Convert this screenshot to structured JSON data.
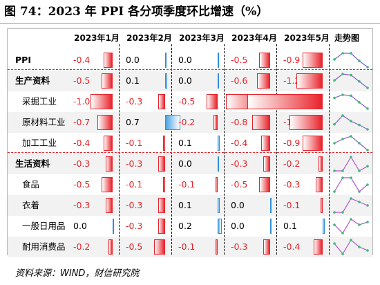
{
  "title": "图 74：2023 年 PPI 各分项季度环比增速（%）",
  "header": {
    "months": [
      "2023年1月",
      "2023年2月",
      "2023年3月",
      "2023年4月",
      "2023年5月"
    ],
    "trend": "走势图"
  },
  "colors": {
    "negative": "#e8232a",
    "positive": "#2f8fd8",
    "trend_blue_line": "#7b5fd0",
    "trend_purple_line": "#b74fd0",
    "trend_point": "#3cb878"
  },
  "rows": [
    {
      "label": "PPI",
      "bold": true,
      "indent": false,
      "values": [
        "-0.4",
        "0.0",
        "0.0",
        "-0.5",
        "-0.9"
      ]
    },
    {
      "label": "生产资料",
      "bold": true,
      "indent": false,
      "values": [
        "-0.5",
        "0.1",
        "0.0",
        "-0.6",
        "-1.2"
      ]
    },
    {
      "label": "采掘工业",
      "bold": false,
      "indent": true,
      "values": [
        "-1.0",
        "-0.3",
        "-0.5",
        "-2.0",
        "-3.4"
      ]
    },
    {
      "label": "原材料工业",
      "bold": false,
      "indent": true,
      "values": [
        "-0.7",
        "0.7",
        "-0.2",
        "-0.8",
        "-1.5"
      ]
    },
    {
      "label": "加工工业",
      "bold": false,
      "indent": true,
      "values": [
        "-0.4",
        "-0.1",
        "0.1",
        "-0.4",
        "-0.9"
      ]
    },
    {
      "label": "生活资料",
      "bold": true,
      "indent": false,
      "values": [
        "-0.3",
        "-0.3",
        "0.0",
        "-0.3",
        "-0.2"
      ]
    },
    {
      "label": "食品",
      "bold": false,
      "indent": true,
      "values": [
        "-0.5",
        "-0.1",
        "-0.1",
        "-0.5",
        "-0.3"
      ]
    },
    {
      "label": "衣着",
      "bold": false,
      "indent": true,
      "values": [
        "-0.3",
        "-0.3",
        "0.1",
        "0.0",
        "-0.1"
      ]
    },
    {
      "label": "一般日用品",
      "bold": false,
      "indent": true,
      "values": [
        "0.0",
        "-0.3",
        "0.2",
        "0.0",
        "0.1"
      ]
    },
    {
      "label": "耐用消费品",
      "bold": false,
      "indent": true,
      "values": [
        "-0.2",
        "-0.5",
        "-0.1",
        "-0.3",
        "-0.4"
      ]
    }
  ],
  "source": "资料来源：WIND，财信研究院"
}
